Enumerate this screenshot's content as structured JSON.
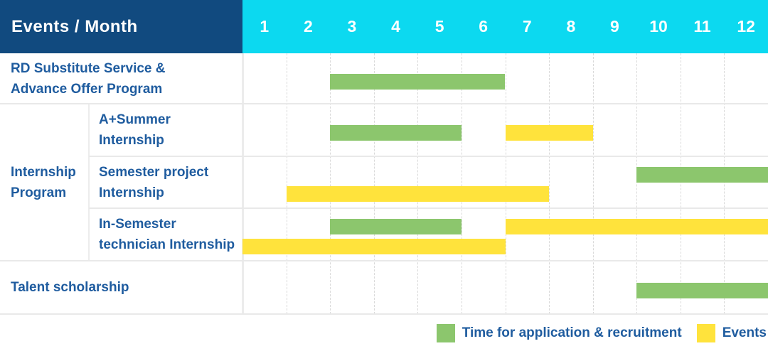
{
  "header": {
    "title": "Events / Month",
    "months": [
      "1",
      "2",
      "3",
      "4",
      "5",
      "6",
      "7",
      "8",
      "9",
      "10",
      "11",
      "12"
    ]
  },
  "colors": {
    "header_bg": "#114a7f",
    "header_text": "#ffffff",
    "months_bg": "#0cd9f0",
    "label_text": "#1f5c9f",
    "recruitment": "#8cc66d",
    "events": "#ffe33c",
    "grid_dashed": "#d9d9d9",
    "grid_solid": "#ececec"
  },
  "group": {
    "label_lines": [
      "Internship",
      "Program"
    ]
  },
  "rows": [
    {
      "label_lines": [
        "RD Substitute Service &",
        "Advance Offer Program"
      ],
      "scope": "full",
      "bars": [
        {
          "series": "recruitment",
          "start": 3,
          "end": 6,
          "line": "center"
        }
      ]
    },
    {
      "label_lines": [
        "A+Summer",
        "Internship"
      ],
      "scope": "sub",
      "bars": [
        {
          "series": "recruitment",
          "start": 3,
          "end": 5,
          "line": "center"
        },
        {
          "series": "events",
          "start": 7,
          "end": 8,
          "line": "center"
        }
      ]
    },
    {
      "label_lines": [
        "Semester project",
        "Internship"
      ],
      "scope": "sub",
      "bars": [
        {
          "series": "recruitment",
          "start": 10,
          "end": 12,
          "line": "top"
        },
        {
          "series": "events",
          "start": 2,
          "end": 7,
          "line": "bottom"
        }
      ]
    },
    {
      "label_lines": [
        "In-Semester",
        "technician Internship"
      ],
      "scope": "sub",
      "bars": [
        {
          "series": "recruitment",
          "start": 3,
          "end": 5,
          "line": "top"
        },
        {
          "series": "events",
          "start": 7,
          "end": 12,
          "line": "top"
        },
        {
          "series": "events",
          "start": 1,
          "end": 6,
          "line": "bottom"
        }
      ]
    },
    {
      "label_lines": [
        "Talent scholarship"
      ],
      "scope": "full",
      "bars": [
        {
          "series": "recruitment",
          "start": 10,
          "end": 12,
          "line": "center"
        }
      ]
    }
  ],
  "legend": [
    {
      "series": "recruitment",
      "label": "Time for application & recruitment"
    },
    {
      "series": "events",
      "label": "Events"
    }
  ],
  "chart_data": {
    "type": "table",
    "subtype": "gantt-schedule",
    "title": "Events / Month",
    "x_axis": {
      "label": "Month",
      "ticks": [
        1,
        2,
        3,
        4,
        5,
        6,
        7,
        8,
        9,
        10,
        11,
        12
      ]
    },
    "legend_entries": [
      "Time for application & recruitment",
      "Events"
    ],
    "rows": [
      {
        "group": "",
        "event": "RD Substitute Service & Advance Offer Program",
        "spans": [
          {
            "series": "Time for application & recruitment",
            "start_month": 3,
            "end_month": 6
          }
        ]
      },
      {
        "group": "Internship Program",
        "event": "A+Summer Internship",
        "spans": [
          {
            "series": "Time for application & recruitment",
            "start_month": 3,
            "end_month": 5
          },
          {
            "series": "Events",
            "start_month": 7,
            "end_month": 8
          }
        ]
      },
      {
        "group": "Internship Program",
        "event": "Semester project Internship",
        "spans": [
          {
            "series": "Time for application & recruitment",
            "start_month": 10,
            "end_month": 12
          },
          {
            "series": "Events",
            "start_month": 2,
            "end_month": 7
          }
        ]
      },
      {
        "group": "Internship Program",
        "event": "In-Semester technician Internship",
        "spans": [
          {
            "series": "Time for application & recruitment",
            "start_month": 3,
            "end_month": 5
          },
          {
            "series": "Events",
            "start_month": 7,
            "end_month": 12
          },
          {
            "series": "Events",
            "start_month": 1,
            "end_month": 6
          }
        ]
      },
      {
        "group": "",
        "event": "Talent scholarship",
        "spans": [
          {
            "series": "Time for application & recruitment",
            "start_month": 10,
            "end_month": 12
          }
        ]
      }
    ]
  }
}
